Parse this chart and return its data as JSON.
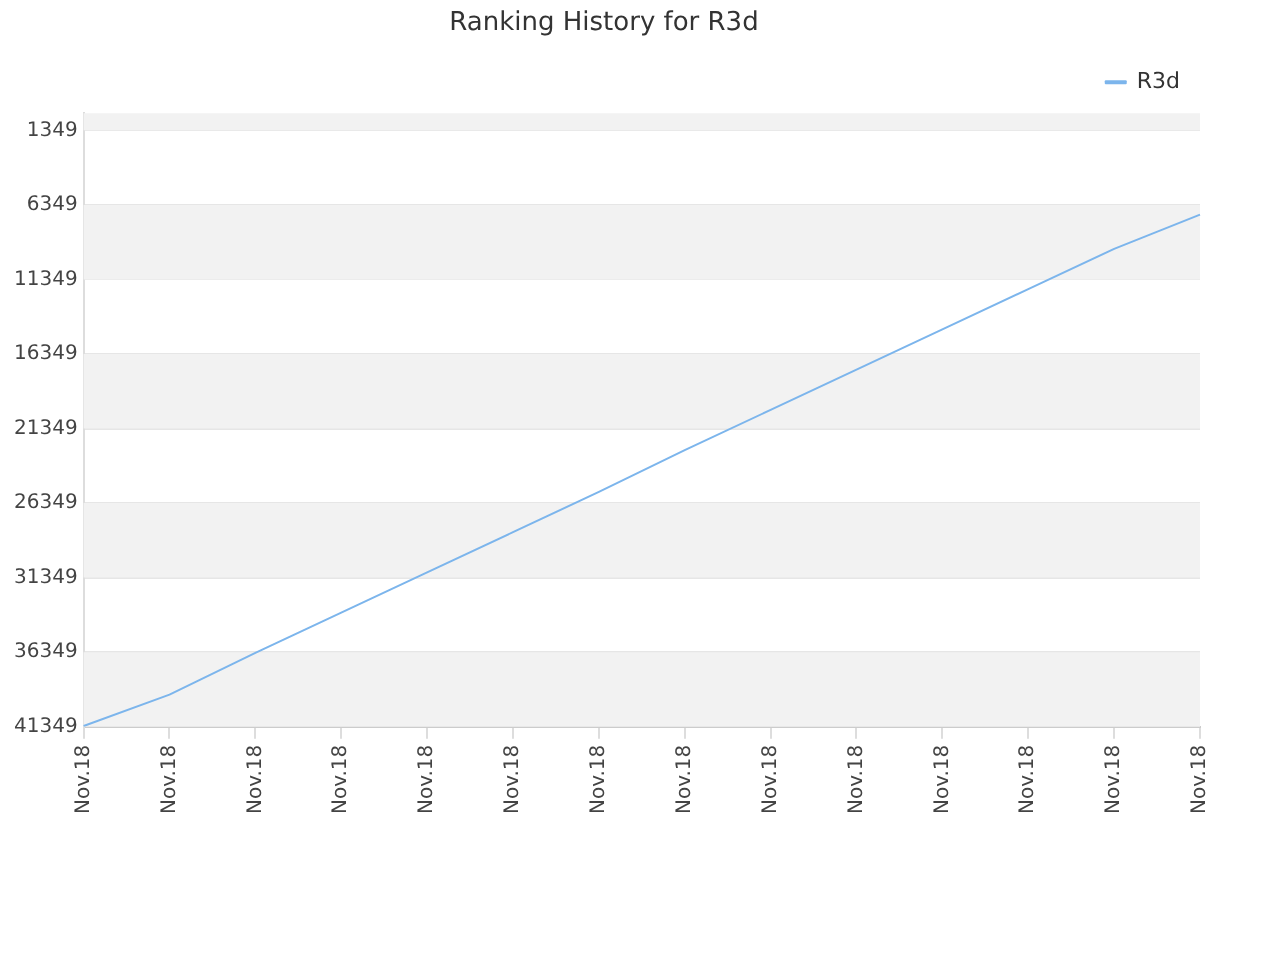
{
  "chart_data": {
    "type": "line",
    "title": "Ranking History for R3d",
    "categories": [
      "Nov.18",
      "Nov.18",
      "Nov.18",
      "Nov.18",
      "Nov.18",
      "Nov.18",
      "Nov.18",
      "Nov.18",
      "Nov.18",
      "Nov.18",
      "Nov.18",
      "Nov.18",
      "Nov.18",
      "Nov.18"
    ],
    "series": [
      {
        "name": "R3d",
        "color": "#7cb5ec",
        "values": [
          41300,
          39200,
          36400,
          33700,
          31000,
          28300,
          25600,
          22800,
          20100,
          17400,
          14700,
          12000,
          9300,
          7000
        ]
      }
    ],
    "ylim": [
      41349,
      200
    ],
    "yticks": [
      1349,
      6349,
      11349,
      16349,
      21349,
      26349,
      31349,
      36349,
      41349
    ],
    "grid": "y",
    "legend": "top right",
    "marker": "none",
    "line_style": "solid"
  }
}
